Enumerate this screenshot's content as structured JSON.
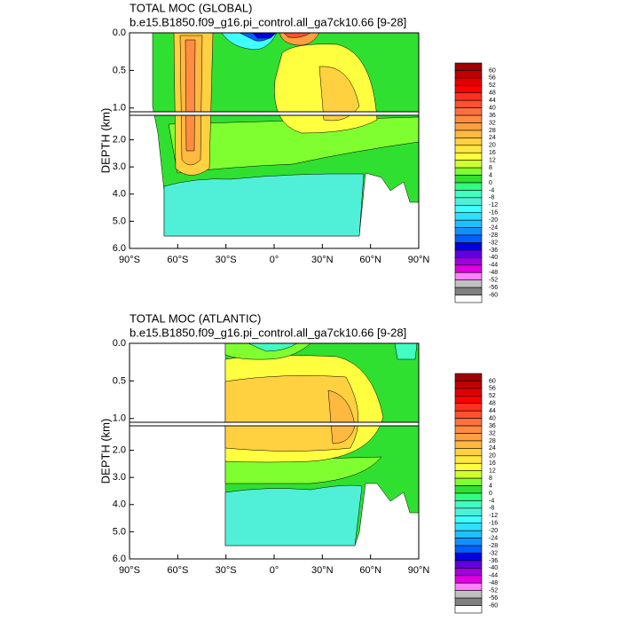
{
  "chart_data": [
    {
      "type": "contour",
      "title": "TOTAL MOC (GLOBAL)",
      "subtitle": "b.e15.B1850.f09_g16.pi_control.all_ga7ck10.66 [9-28]",
      "ylabel": "DEPTH (km)",
      "xlim": [
        -90,
        90
      ],
      "xticks": [
        {
          "value": -90,
          "label": "90°S"
        },
        {
          "value": -60,
          "label": "60°S"
        },
        {
          "value": -30,
          "label": "30°S"
        },
        {
          "value": 0,
          "label": "0°"
        },
        {
          "value": 30,
          "label": "30°N"
        },
        {
          "value": 60,
          "label": "60°N"
        },
        {
          "value": 90,
          "label": "90°N"
        }
      ],
      "ylim": [
        0,
        6
      ],
      "y_break": [
        1.05,
        1.1
      ],
      "yticks": [
        {
          "value": 0,
          "label": "0.0"
        },
        {
          "value": 0.5,
          "label": "0.5"
        },
        {
          "value": 1,
          "label": "1.0"
        },
        {
          "value": 2,
          "label": "2.0"
        },
        {
          "value": 3,
          "label": "3.0"
        },
        {
          "value": 4,
          "label": "4.0"
        },
        {
          "value": 5,
          "label": "5.0"
        },
        {
          "value": 6,
          "label": "6.0"
        }
      ],
      "levels": [
        60,
        56,
        52,
        48,
        44,
        40,
        36,
        32,
        28,
        24,
        20,
        16,
        12,
        8,
        4,
        0,
        -4,
        -8,
        -12,
        -16,
        -20,
        -24,
        -28,
        -32,
        -36,
        -40,
        -44,
        -48,
        -52,
        -56,
        -60
      ],
      "colors": [
        "#a00000",
        "#c00000",
        "#e00000",
        "#ff0000",
        "#ff3020",
        "#ff5030",
        "#ff7040",
        "#ff8c40",
        "#ffa040",
        "#ffb840",
        "#ffd040",
        "#ffe840",
        "#ffff40",
        "#d0ff30",
        "#80ff30",
        "#30e030",
        "#30ff80",
        "#40ffc0",
        "#50f0d8",
        "#40ffff",
        "#30e0ff",
        "#20c0ff",
        "#1090ff",
        "#0060ff",
        "#0000e0",
        "#6000e0",
        "#a000e0",
        "#e000e0",
        "#ff80ff",
        "#c0c0c0",
        "#808080",
        "#ffffff"
      ]
    },
    {
      "type": "contour",
      "title": "TOTAL MOC (ATLANTIC)",
      "subtitle": "b.e15.B1850.f09_g16.pi_control.all_ga7ck10.66 [9-28]",
      "ylabel": "DEPTH (km)",
      "xlim": [
        -90,
        90
      ],
      "xticks": [
        {
          "value": -90,
          "label": "90°S"
        },
        {
          "value": -60,
          "label": "60°S"
        },
        {
          "value": -30,
          "label": "30°S"
        },
        {
          "value": 0,
          "label": "0°"
        },
        {
          "value": 30,
          "label": "30°N"
        },
        {
          "value": 60,
          "label": "60°N"
        },
        {
          "value": 90,
          "label": "90°N"
        }
      ],
      "ylim": [
        0,
        6
      ],
      "y_break": [
        1.05,
        1.1
      ],
      "yticks": [
        {
          "value": 0,
          "label": "0.0"
        },
        {
          "value": 0.5,
          "label": "0.5"
        },
        {
          "value": 1,
          "label": "1.0"
        },
        {
          "value": 2,
          "label": "2.0"
        },
        {
          "value": 3,
          "label": "3.0"
        },
        {
          "value": 4,
          "label": "4.0"
        },
        {
          "value": 5,
          "label": "5.0"
        },
        {
          "value": 6,
          "label": "6.0"
        }
      ],
      "levels": [
        60,
        56,
        52,
        48,
        44,
        40,
        36,
        32,
        28,
        24,
        20,
        16,
        12,
        8,
        4,
        0,
        -4,
        -8,
        -12,
        -16,
        -20,
        -24,
        -28,
        -32,
        -36,
        -40,
        -44,
        -48,
        -52,
        -56,
        -60
      ],
      "colors": [
        "#a00000",
        "#c00000",
        "#e00000",
        "#ff0000",
        "#ff3020",
        "#ff5030",
        "#ff7040",
        "#ff8c40",
        "#ffa040",
        "#ffb840",
        "#ffd040",
        "#ffe840",
        "#ffff40",
        "#d0ff30",
        "#80ff30",
        "#30e030",
        "#30ff80",
        "#40ffc0",
        "#50f0d8",
        "#40ffff",
        "#30e0ff",
        "#20c0ff",
        "#1090ff",
        "#0060ff",
        "#0000e0",
        "#6000e0",
        "#a000e0",
        "#e000e0",
        "#ff80ff",
        "#c0c0c0",
        "#808080",
        "#ffffff"
      ]
    }
  ]
}
